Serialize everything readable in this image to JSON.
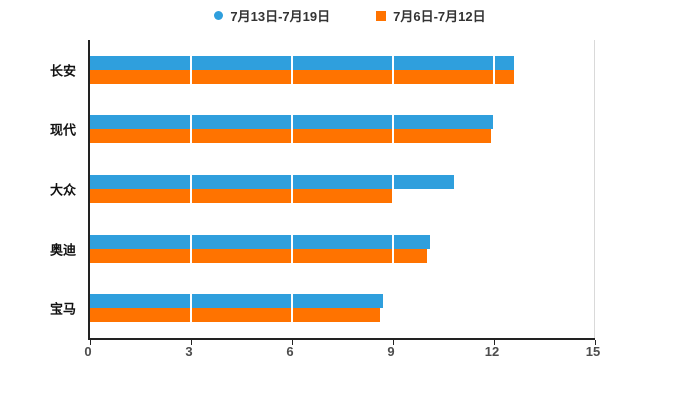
{
  "chart_data": {
    "type": "bar",
    "orientation": "horizontal",
    "title": "",
    "xlabel": "",
    "ylabel": "",
    "categories": [
      "长安",
      "现代",
      "大众",
      "奥迪",
      "宝马"
    ],
    "series": [
      {
        "name": "7月13日-7月19日",
        "marker": "circle",
        "color": "#2f9fdd",
        "values": [
          12.6,
          12.0,
          10.8,
          10.1,
          8.7
        ]
      },
      {
        "name": "7月6日-7月12日",
        "marker": "square",
        "color": "#ff7300",
        "values": [
          12.6,
          11.9,
          9.0,
          10.0,
          8.6
        ]
      }
    ],
    "xlim": [
      0,
      15
    ],
    "xticks": [
      0,
      3,
      6,
      9,
      12,
      15
    ],
    "grid": true,
    "legend_position": "top",
    "axis_color": "#222222",
    "background": "#ffffff"
  }
}
